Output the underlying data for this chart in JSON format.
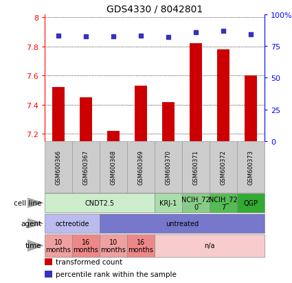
{
  "title": "GDS4330 / 8042801",
  "samples": [
    "GSM600366",
    "GSM600367",
    "GSM600368",
    "GSM600369",
    "GSM600370",
    "GSM600371",
    "GSM600372",
    "GSM600373"
  ],
  "bar_values": [
    7.52,
    7.45,
    7.22,
    7.53,
    7.42,
    7.82,
    7.78,
    7.6
  ],
  "percentile_y": [
    7.875,
    7.868,
    7.868,
    7.872,
    7.864,
    7.898,
    7.905,
    7.882
  ],
  "y_min": 7.15,
  "y_max": 8.02,
  "y_ticks": [
    7.2,
    7.4,
    7.6,
    7.8,
    8.0
  ],
  "y_tick_labels": [
    "7.2",
    "7.4",
    "7.6",
    "7.8",
    "8"
  ],
  "y2_ticks_pct": [
    0,
    25,
    50,
    75,
    100
  ],
  "y2_tick_labels": [
    "0",
    "25",
    "50",
    "75",
    "100%"
  ],
  "bar_color": "#cc0000",
  "dot_color": "#3333bb",
  "bar_width": 0.45,
  "cell_line_groups": [
    {
      "text": "CNDT2.5",
      "span": [
        0,
        4
      ],
      "color": "#cceecc"
    },
    {
      "text": "KRJ-1",
      "span": [
        4,
        5
      ],
      "color": "#aaddaa"
    },
    {
      "text": "NCIH_72\n0",
      "span": [
        5,
        6
      ],
      "color": "#88cc88"
    },
    {
      "text": "NCIH_72\n7",
      "span": [
        6,
        7
      ],
      "color": "#55bb55"
    },
    {
      "text": "QGP",
      "span": [
        7,
        8
      ],
      "color": "#33aa33"
    }
  ],
  "agent_groups": [
    {
      "text": "octreotide",
      "span": [
        0,
        2
      ],
      "color": "#bbbbee"
    },
    {
      "text": "untreated",
      "span": [
        2,
        8
      ],
      "color": "#7777cc"
    }
  ],
  "time_groups": [
    {
      "text": "10\nmonths",
      "span": [
        0,
        1
      ],
      "color": "#f0a0a0"
    },
    {
      "text": "16\nmonths",
      "span": [
        1,
        2
      ],
      "color": "#ee8888"
    },
    {
      "text": "10\nmonths",
      "span": [
        2,
        3
      ],
      "color": "#f0a0a0"
    },
    {
      "text": "16\nmonths",
      "span": [
        3,
        4
      ],
      "color": "#ee8888"
    },
    {
      "text": "n/a",
      "span": [
        4,
        8
      ],
      "color": "#f8cccc"
    }
  ],
  "row_labels": [
    "cell line",
    "agent",
    "time"
  ],
  "legend_items": [
    {
      "color": "#cc0000",
      "label": "transformed count"
    },
    {
      "color": "#3333bb",
      "label": "percentile rank within the sample"
    }
  ],
  "sample_box_color": "#cccccc",
  "sample_box_edge": "#999999"
}
